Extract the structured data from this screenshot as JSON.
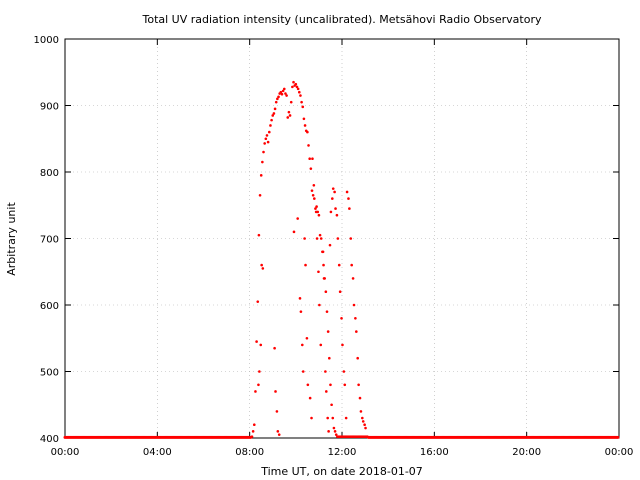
{
  "chart_data": {
    "type": "scatter",
    "title": "Total UV radiation intensity (uncalibrated). Metsähovi Radio Observatory",
    "xlabel": "Time UT, on date 2018-01-07",
    "ylabel": "Arbitrary unit",
    "x_tick_labels": [
      "00:00",
      "04:00",
      "08:00",
      "12:00",
      "16:00",
      "20:00",
      "00:00"
    ],
    "x_ticks_hours": [
      0,
      4,
      8,
      12,
      16,
      20,
      24
    ],
    "xlim_hours": [
      0,
      24
    ],
    "y_ticks": [
      400,
      500,
      600,
      700,
      800,
      900,
      1000
    ],
    "ylim": [
      400,
      1000
    ],
    "grid": true,
    "legend": "none",
    "marker_color": "#ff0000",
    "series": [
      {
        "x_hours": [
          8.1,
          8.15,
          8.2,
          8.25,
          8.3,
          8.35,
          8.4,
          8.45,
          8.5,
          8.55,
          8.6,
          8.65,
          8.7,
          8.75,
          8.8,
          8.85,
          8.9,
          8.95,
          9.0,
          9.05,
          9.1,
          9.15,
          9.2,
          9.25,
          9.3,
          9.35,
          9.4,
          9.45,
          9.5,
          9.55,
          9.6,
          9.65,
          9.7,
          9.75,
          9.8,
          9.85,
          9.9,
          9.95,
          10.0,
          10.05,
          10.1,
          10.15,
          10.2,
          10.25,
          10.3,
          10.35,
          10.4,
          10.45,
          10.5,
          10.55,
          10.6,
          10.65,
          10.7,
          10.75,
          10.8,
          10.85,
          10.9,
          10.95,
          11.0,
          11.05,
          11.1,
          11.15,
          11.2,
          11.25,
          11.3,
          11.35,
          11.4,
          11.45,
          11.5,
          11.55,
          11.6,
          11.65,
          11.7,
          11.75,
          11.8,
          11.85,
          11.9,
          11.95,
          12.0,
          12.05,
          12.1,
          12.15,
          12.2,
          12.25,
          12.3,
          12.35,
          12.4,
          12.45,
          12.5,
          12.55,
          12.6,
          12.65,
          12.7,
          12.75,
          12.8,
          12.85,
          12.9,
          12.95,
          13.0,
          13.05,
          13.1,
          8.38,
          8.42,
          8.48,
          8.52,
          8.57,
          9.08,
          9.12,
          9.18,
          9.22,
          9.28,
          9.92,
          10.08,
          10.18,
          10.22,
          10.28,
          10.32,
          10.38,
          10.42,
          10.48,
          10.52,
          10.62,
          10.68,
          10.72,
          10.78,
          10.88,
          10.92,
          10.98,
          11.02,
          11.08,
          11.18,
          11.22,
          11.28,
          11.32,
          11.38,
          11.42,
          11.48,
          11.52,
          11.58,
          11.62,
          11.68,
          11.72,
          11.78,
          11.82,
          11.88,
          11.92,
          11.98,
          12.02,
          12.08,
          12.12,
          12.18,
          12.22,
          12.28,
          12.32,
          12.38,
          12.42,
          12.48,
          12.52,
          12.58,
          12.62,
          12.68,
          12.72,
          12.78,
          12.82,
          12.88,
          12.92,
          12.98,
          13.02
        ],
        "y": [
          402,
          410,
          420,
          470,
          545,
          605,
          705,
          765,
          795,
          815,
          830,
          843,
          850,
          855,
          845,
          860,
          870,
          878,
          885,
          888,
          895,
          905,
          910,
          913,
          918,
          920,
          917,
          922,
          925,
          918,
          915,
          882,
          890,
          885,
          905,
          928,
          935,
          930,
          932,
          928,
          925,
          920,
          915,
          905,
          898,
          880,
          870,
          862,
          860,
          840,
          820,
          805,
          772,
          765,
          760,
          745,
          748,
          740,
          735,
          705,
          700,
          680,
          660,
          640,
          620,
          590,
          560,
          520,
          480,
          450,
          430,
          415,
          410,
          405,
          402,
          402,
          402,
          402,
          402,
          402,
          402,
          402,
          402,
          402,
          402,
          402,
          402,
          402,
          402,
          402,
          402,
          402,
          402,
          402,
          402,
          402,
          402,
          402,
          402,
          402,
          402,
          480,
          500,
          540,
          660,
          655,
          535,
          470,
          440,
          410,
          405,
          710,
          730,
          610,
          590,
          540,
          500,
          700,
          660,
          550,
          480,
          460,
          430,
          820,
          780,
          740,
          700,
          650,
          600,
          540,
          680,
          640,
          500,
          470,
          430,
          410,
          690,
          740,
          760,
          775,
          770,
          745,
          735,
          700,
          660,
          620,
          580,
          540,
          500,
          480,
          430,
          770,
          760,
          745,
          700,
          660,
          640,
          600,
          580,
          560,
          520,
          480,
          460,
          440,
          430,
          425,
          420,
          415
        ]
      }
    ]
  }
}
